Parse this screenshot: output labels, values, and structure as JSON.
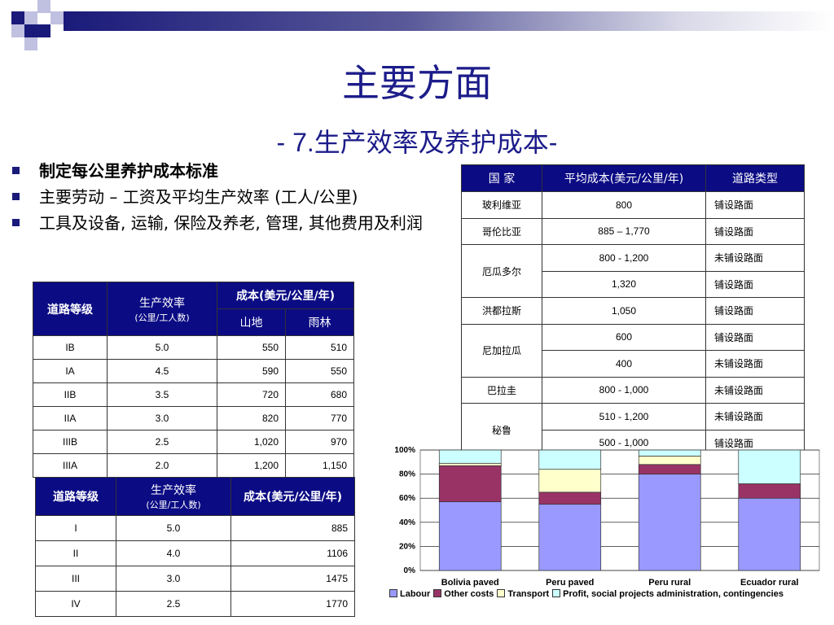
{
  "title": "主要方面",
  "subtitle": {
    "prefix": "- 7.",
    "text": "生产效率及养护成本",
    "suffix": "-"
  },
  "bullets": [
    {
      "text": "制定每公里养护成本标准"
    },
    {
      "text": "主要劳动 – 工资及平均生产效率 (工人/公里)"
    },
    {
      "text": "工具及设备, 运输, 保险及养老, 管理, 其他费用及利润"
    }
  ],
  "table1": {
    "h_grade": "道路等级",
    "h_prod": "生产效率",
    "h_prod_sub": "(公里/工人数)",
    "h_cost": "成本(美元/公里/年)",
    "h_mountain": "山地",
    "h_rain": "雨林",
    "rows": [
      {
        "grade": "IB",
        "prod": "5.0",
        "mountain": "550",
        "rain": "510"
      },
      {
        "grade": "IA",
        "prod": "4.5",
        "mountain": "590",
        "rain": "550"
      },
      {
        "grade": "IIB",
        "prod": "3.5",
        "mountain": "720",
        "rain": "680"
      },
      {
        "grade": "IIA",
        "prod": "3.0",
        "mountain": "820",
        "rain": "770"
      },
      {
        "grade": "IIIB",
        "prod": "2.5",
        "mountain": "1,020",
        "rain": "970"
      },
      {
        "grade": "IIIA",
        "prod": "2.0",
        "mountain": "1,200",
        "rain": "1,150"
      }
    ]
  },
  "table2": {
    "h_grade": "道路等级",
    "h_prod": "生产效率",
    "h_prod_sub": "(公里/工人数)",
    "h_cost": "成本(美元/公里/年)",
    "rows": [
      {
        "grade": "I",
        "prod": "5.0",
        "cost": "885"
      },
      {
        "grade": "II",
        "prod": "4.0",
        "cost": "1106"
      },
      {
        "grade": "III",
        "prod": "3.0",
        "cost": "1475"
      },
      {
        "grade": "IV",
        "prod": "2.5",
        "cost": "1770"
      }
    ]
  },
  "table3": {
    "h_country": "国 家",
    "h_cost": "平均成本(美元/公里/年)",
    "h_type": "道路类型",
    "c1": "玻利维亚",
    "c2": "哥伦比亚",
    "c3": "厄瓜多尔",
    "c4": "洪都拉斯",
    "c5": "尼加拉瓜",
    "c6": "巴拉圭",
    "c7": "秘鲁",
    "r1": {
      "cost": "800",
      "type": "铺设路面"
    },
    "r2": {
      "cost": "885 – 1,770",
      "type": "铺设路面"
    },
    "r3a": {
      "cost": "800 - 1,200",
      "type": "未铺设路面"
    },
    "r3b": {
      "cost": "1,320",
      "type": "铺设路面"
    },
    "r4": {
      "cost": "1,050",
      "type": "铺设路面"
    },
    "r5a": {
      "cost": "600",
      "type": "铺设路面"
    },
    "r5b": {
      "cost": "400",
      "type": "未铺设路面"
    },
    "r6": {
      "cost": "800 -  1,000",
      "type": "未铺设路面"
    },
    "r7a": {
      "cost": "510 -  1,200",
      "type": "未铺设路面"
    },
    "r7b": {
      "cost": "500 -  1,000",
      "type": "铺设路面"
    }
  },
  "chart_data": {
    "type": "bar",
    "stacked": true,
    "percent": true,
    "categories": [
      "Bolivia paved",
      "Peru paved",
      "Peru rural",
      "Ecuador rural"
    ],
    "series": [
      {
        "name": "Labour",
        "color": "#9999ff",
        "values": [
          57,
          55,
          80,
          60
        ]
      },
      {
        "name": "Other costs",
        "color": "#993366",
        "values": [
          30,
          10,
          8,
          12
        ]
      },
      {
        "name": "Transport",
        "color": "#ffffcc",
        "values": [
          2,
          19,
          7,
          0
        ]
      },
      {
        "name": "Profit, social projects administration, contingencies",
        "color": "#ccffff",
        "values": [
          11,
          16,
          5,
          28
        ]
      }
    ],
    "y_ticks": [
      "0%",
      "20%",
      "40%",
      "60%",
      "80%",
      "100%"
    ],
    "ylim": [
      0,
      100
    ],
    "grid": true,
    "legend_position": "bottom"
  }
}
